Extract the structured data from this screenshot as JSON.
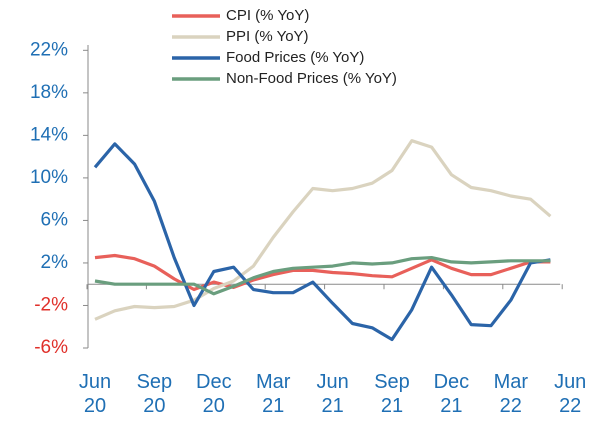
{
  "chart_data": {
    "type": "line",
    "categories": [
      "Jun\n20",
      null,
      null,
      "Sep\n20",
      null,
      null,
      "Dec\n20",
      null,
      null,
      "Mar\n21",
      null,
      null,
      "Jun\n21",
      null,
      null,
      "Sep\n21",
      null,
      null,
      "Dec\n21",
      null,
      null,
      "Mar\n22",
      null,
      null,
      "Jun\n22"
    ],
    "series": [
      {
        "name": "CPI (% YoY)",
        "color": "#e8605a",
        "values": [
          2.5,
          2.7,
          2.4,
          1.7,
          0.5,
          -0.5,
          0.2,
          -0.3,
          0.4,
          0.9,
          1.3,
          1.3,
          1.1,
          1.0,
          0.8,
          0.7,
          1.5,
          2.3,
          1.5,
          0.9,
          0.9,
          1.5,
          2.1,
          2.1,
          null
        ]
      },
      {
        "name": "PPI  (% YoY)",
        "color": "#dad3bf",
        "values": [
          -3.3,
          -2.5,
          -2.1,
          -2.2,
          -2.1,
          -1.5,
          -0.4,
          0.3,
          1.7,
          4.4,
          6.8,
          9.0,
          8.8,
          9.0,
          9.5,
          10.7,
          13.5,
          12.9,
          10.3,
          9.1,
          8.8,
          8.3,
          8.0,
          6.4,
          null
        ]
      },
      {
        "name": "Food Prices (% YoY)",
        "color": "#2b64a8",
        "values": [
          11.0,
          13.2,
          11.3,
          7.8,
          2.5,
          -2.0,
          1.2,
          1.6,
          -0.5,
          -0.8,
          -0.8,
          0.2,
          -1.8,
          -3.7,
          -4.1,
          -5.2,
          -2.4,
          1.6,
          -1.0,
          -3.8,
          -3.9,
          -1.5,
          2.0,
          2.3,
          null
        ]
      },
      {
        "name": "Non-Food Prices (% YoY)",
        "color": "#6a9e7e",
        "values": [
          0.3,
          0.0,
          0.0,
          0.0,
          0.0,
          0.0,
          -0.9,
          -0.2,
          0.6,
          1.2,
          1.5,
          1.6,
          1.7,
          2.0,
          1.9,
          2.0,
          2.4,
          2.5,
          2.1,
          2.0,
          2.1,
          2.2,
          2.2,
          2.2,
          null
        ]
      }
    ],
    "ylim": [
      -6,
      22.5
    ],
    "yticks": [
      {
        "value": 22,
        "label": "22%"
      },
      {
        "value": 18,
        "label": "18%"
      },
      {
        "value": 14,
        "label": "14%"
      },
      {
        "value": 10,
        "label": "10%"
      },
      {
        "value": 6,
        "label": "6%"
      },
      {
        "value": 2,
        "label": "2%"
      },
      {
        "value": -2,
        "label": "-2%"
      },
      {
        "value": -6,
        "label": "-6%"
      }
    ],
    "tick_label_color": "#1f6fb4",
    "negative_tick_label_color": "#e0302a",
    "axis_color": "#8a8a8a",
    "grid": false,
    "legend": "top"
  }
}
